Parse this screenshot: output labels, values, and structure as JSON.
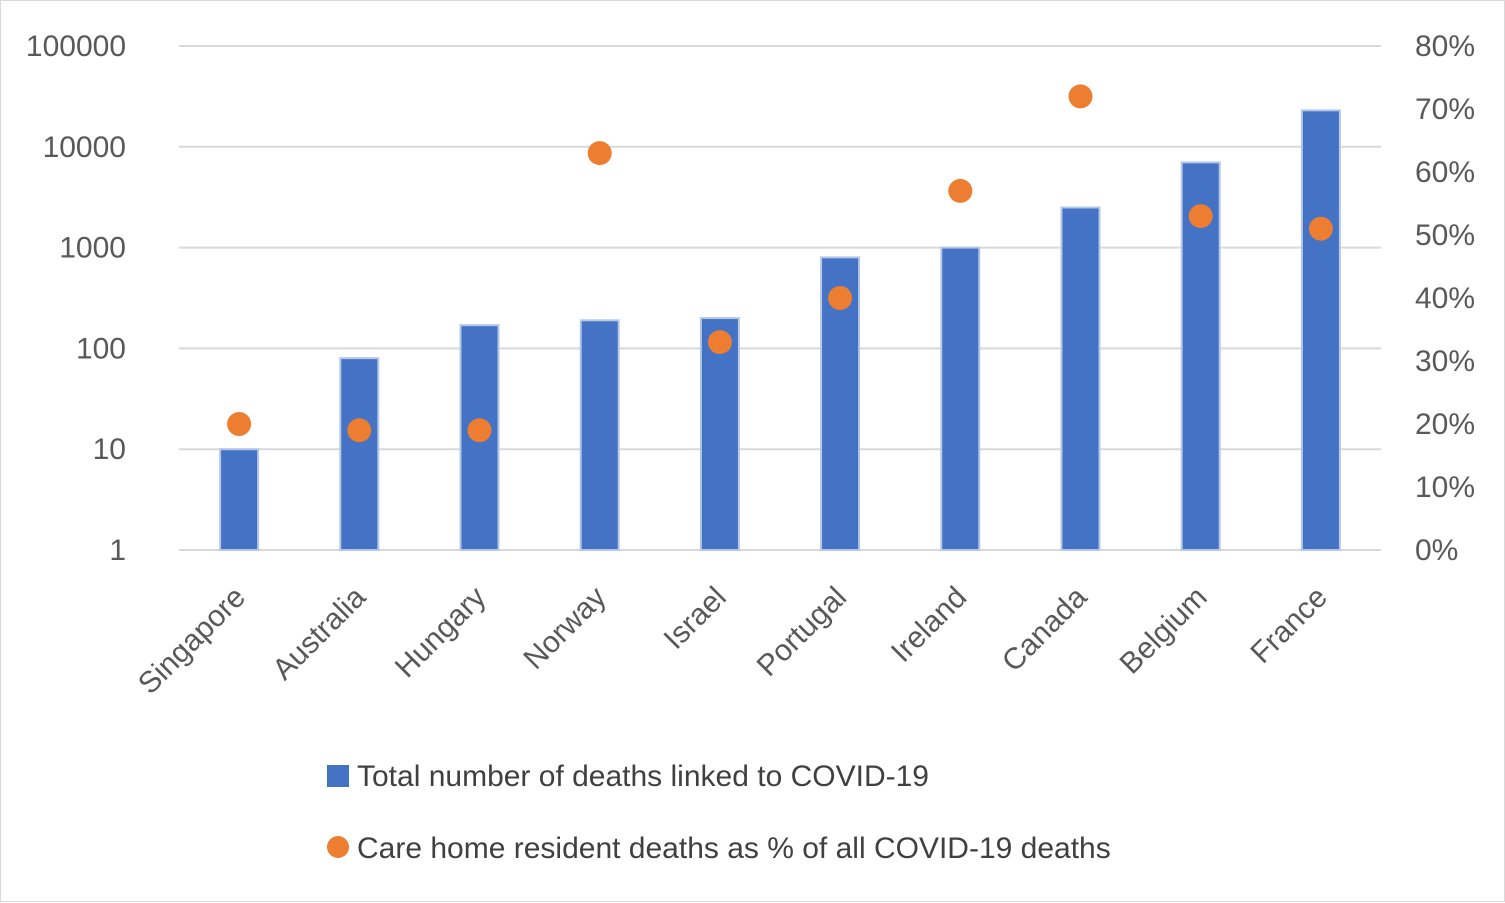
{
  "chart_data": {
    "type": "bar",
    "title": "",
    "xlabel": "",
    "ylabel": "",
    "categories": [
      "Singapore",
      "Australia",
      "Hungary",
      "Norway",
      "Israel",
      "Portugal",
      "Ireland",
      "Canada",
      "Belgium",
      "France"
    ],
    "y_scale": "log",
    "ylim": [
      1,
      100000
    ],
    "y_ticks": [
      "100000",
      "10000",
      "1000",
      "100",
      "10",
      "1"
    ],
    "y2_scale": "linear",
    "y2lim": [
      0,
      0.8
    ],
    "y2_ticks": [
      "80%",
      "70%",
      "60%",
      "50%",
      "40%",
      "30%",
      "20%",
      "10%",
      "0%"
    ],
    "grid": true,
    "legend_position": "bottom",
    "series": [
      {
        "name": "Total number of deaths linked to COVID-19",
        "type": "bar",
        "axis": "left",
        "color": "#4472c4",
        "values": [
          10,
          80,
          170,
          190,
          200,
          800,
          1000,
          2500,
          7000,
          23000
        ]
      },
      {
        "name": "Care home resident deaths as % of all COVID-19 deaths",
        "type": "scatter",
        "axis": "right",
        "color": "#ed7d31",
        "values": [
          0.2,
          0.19,
          0.19,
          0.63,
          0.33,
          0.4,
          0.57,
          0.72,
          0.53,
          0.51
        ]
      }
    ]
  }
}
